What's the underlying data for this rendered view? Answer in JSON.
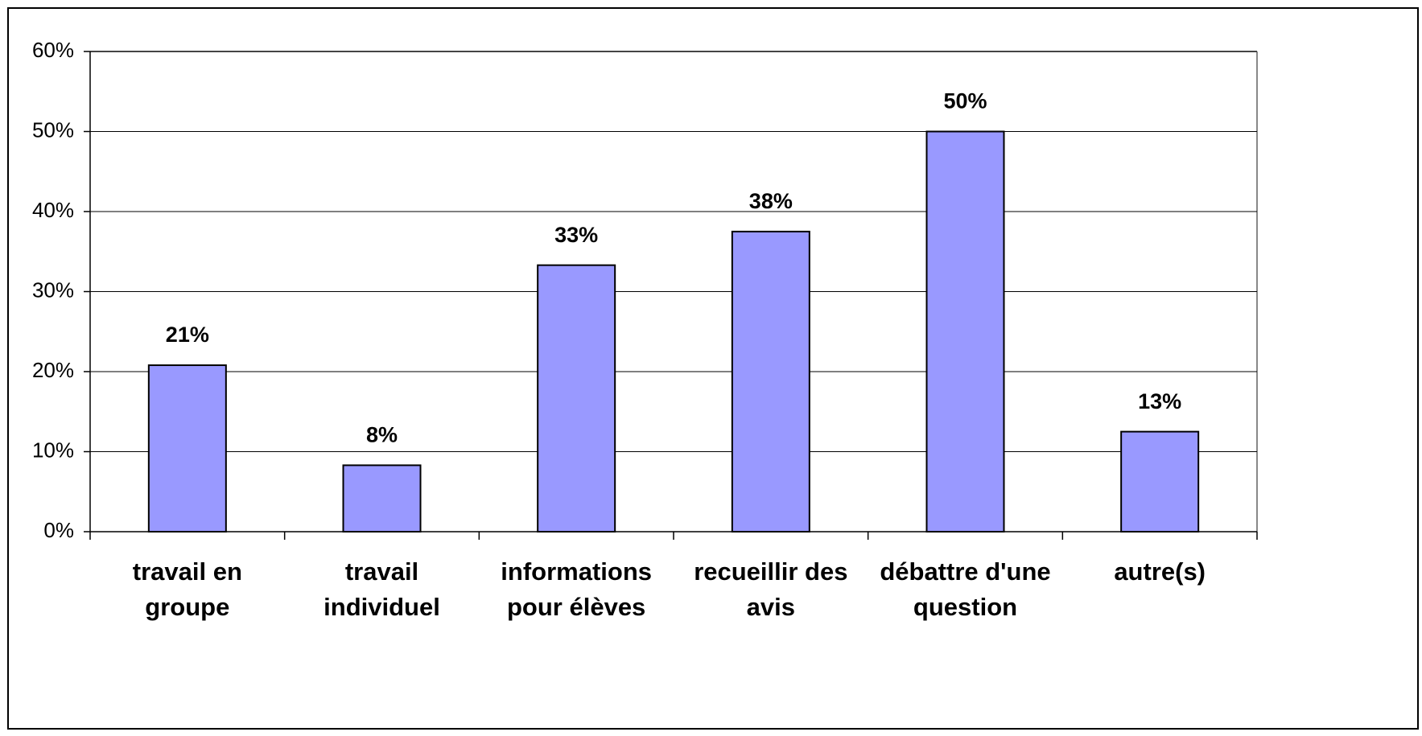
{
  "chart_data": {
    "type": "bar",
    "categories": [
      "travail en\ngroupe",
      "travail\nindividuel",
      "informations\npour élèves",
      "recueillir des\navis",
      "débattre d'une\nquestion",
      "autre(s)"
    ],
    "values": [
      20.8,
      8.3,
      33.3,
      37.5,
      50,
      12.5
    ],
    "value_labels": [
      "21%",
      "8%",
      "33%",
      "38%",
      "50%",
      "13%"
    ],
    "color": "#9999ff",
    "ylim": [
      0,
      60
    ],
    "yticks": [
      {
        "value": 0,
        "label": "0%"
      },
      {
        "value": 10,
        "label": "10%"
      },
      {
        "value": 20,
        "label": "20%"
      },
      {
        "value": 30,
        "label": "30%"
      },
      {
        "value": 40,
        "label": "40%"
      },
      {
        "value": 50,
        "label": "50%"
      },
      {
        "value": 60,
        "label": "60%"
      }
    ],
    "grid": true
  }
}
